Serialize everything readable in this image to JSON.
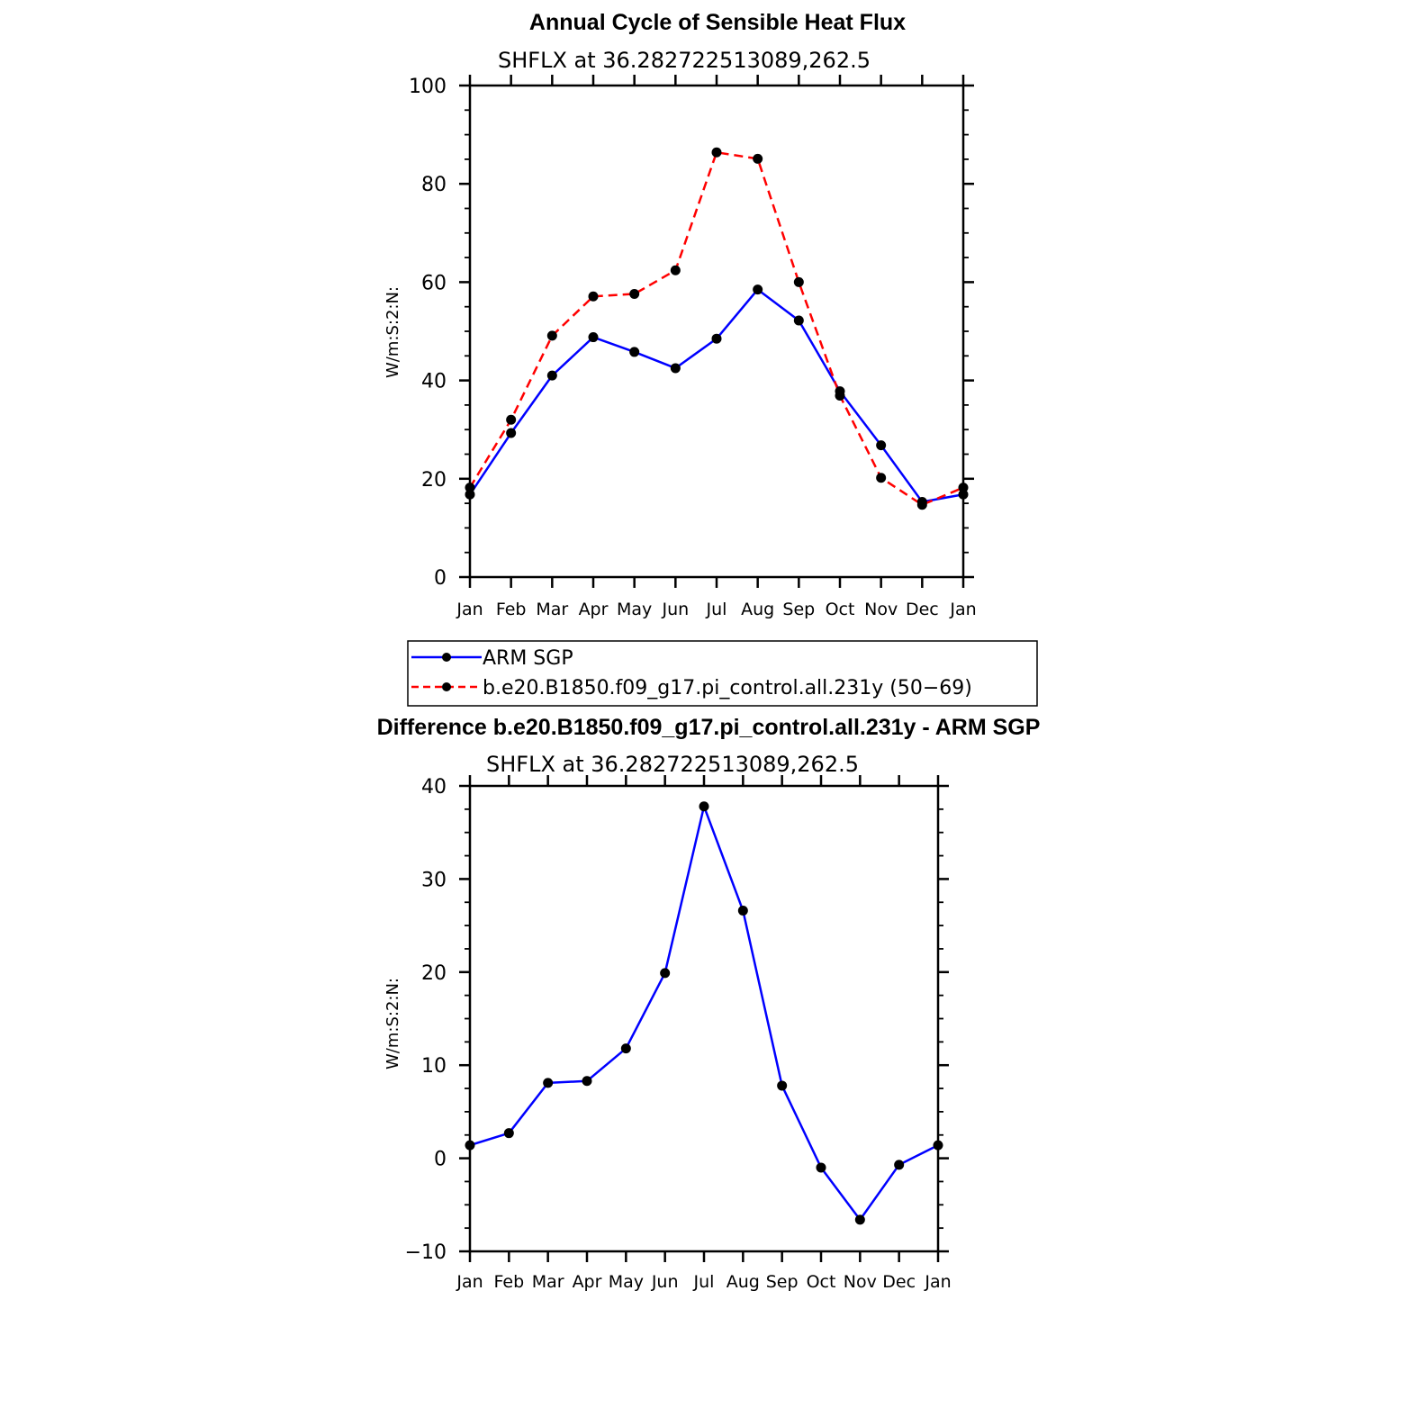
{
  "chart_data": [
    {
      "type": "line",
      "title": "Annual Cycle of Sensible Heat Flux",
      "subtitle": "SHFLX at 36.282722513089,262.5",
      "ylabel": "W/m:S:2:N:",
      "xlabel": "",
      "categories": [
        "Jan",
        "Feb",
        "Mar",
        "Apr",
        "May",
        "Jun",
        "Jul",
        "Aug",
        "Sep",
        "Oct",
        "Nov",
        "Dec",
        "Jan"
      ],
      "ylim": [
        0,
        100
      ],
      "yticks": [
        0,
        20,
        40,
        60,
        80,
        100
      ],
      "series": [
        {
          "name": "ARM SGP",
          "color": "#0000ff",
          "dash": "solid",
          "marker": "dot",
          "values": [
            16.8,
            29.3,
            41.0,
            48.8,
            45.8,
            42.5,
            48.5,
            58.5,
            52.2,
            37.8,
            26.8,
            15.3,
            16.8
          ]
        },
        {
          "name": "b.e20.B1850.f09_g17.pi_control.all.231y (50−69)",
          "color": "#ff0000",
          "dash": "dashed",
          "marker": "dot",
          "values": [
            18.2,
            32.0,
            49.1,
            57.1,
            57.6,
            62.4,
            86.4,
            85.1,
            60.0,
            36.9,
            20.2,
            14.7,
            18.2
          ]
        }
      ],
      "grid": false,
      "legend": "below"
    },
    {
      "type": "line",
      "title": "Difference b.e20.B1850.f09_g17.pi_control.all.231y - ARM SGP",
      "subtitle": "SHFLX at 36.282722513089,262.5",
      "ylabel": "W/m:S:2:N:",
      "xlabel": "",
      "categories": [
        "Jan",
        "Feb",
        "Mar",
        "Apr",
        "May",
        "Jun",
        "Jul",
        "Aug",
        "Sep",
        "Oct",
        "Nov",
        "Dec",
        "Jan"
      ],
      "ylim": [
        -10,
        40
      ],
      "yticks": [
        -10,
        0,
        10,
        20,
        30,
        40
      ],
      "series": [
        {
          "color": "#0000ff",
          "dash": "solid",
          "marker": "dot",
          "values": [
            1.4,
            2.7,
            8.1,
            8.3,
            11.8,
            19.9,
            37.8,
            26.6,
            7.8,
            -1.0,
            -6.6,
            -0.7,
            1.4
          ]
        }
      ],
      "grid": false
    }
  ]
}
